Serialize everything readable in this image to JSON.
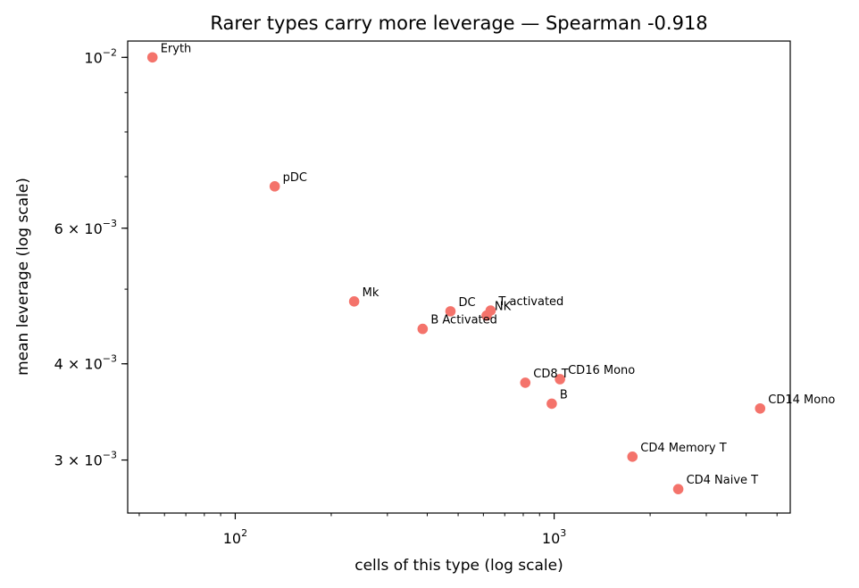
{
  "chart_data": {
    "type": "scatter",
    "title": "Rarer types carry more leverage — Spearman -0.918",
    "xlabel": "cells of this type (log scale)",
    "ylabel": "mean leverage (log scale)",
    "xscale": "log",
    "yscale": "log",
    "xlim": [
      46,
      5500
    ],
    "ylim": [
      0.00256,
      0.0105
    ],
    "grid": false,
    "marker_color": "#f4736b",
    "x_ticks": [
      {
        "value": 100,
        "base": "10",
        "exp": "2"
      },
      {
        "value": 1000,
        "base": "10",
        "exp": "3"
      }
    ],
    "y_ticks": [
      {
        "value": 0.003,
        "mant": "3",
        "base": "10",
        "exp": "−3"
      },
      {
        "value": 0.004,
        "mant": "4",
        "base": "10",
        "exp": "−3"
      },
      {
        "value": 0.006,
        "mant": "6",
        "base": "10",
        "exp": "−3"
      },
      {
        "value": 0.01,
        "mant": "",
        "base": "10",
        "exp": "−2"
      }
    ],
    "points": [
      {
        "label": "Eryth",
        "x": 55,
        "y": 0.01,
        "dx": 9,
        "dy": -6
      },
      {
        "label": "pDC",
        "x": 133,
        "y": 0.0068,
        "dx": 9,
        "dy": -6
      },
      {
        "label": "Mk",
        "x": 236,
        "y": 0.00482,
        "dx": 9,
        "dy": -6
      },
      {
        "label": "DC",
        "x": 473,
        "y": 0.00468,
        "dx": 9,
        "dy": -6
      },
      {
        "label": "NK",
        "x": 614,
        "y": 0.00462,
        "dx": 9,
        "dy": -6
      },
      {
        "label": "T activated",
        "x": 632,
        "y": 0.00469,
        "dx": 9,
        "dy": -6
      },
      {
        "label": "B Activated",
        "x": 387,
        "y": 0.00444,
        "dx": 9,
        "dy": -6
      },
      {
        "label": "CD8 T",
        "x": 812,
        "y": 0.00378,
        "dx": 9,
        "dy": -6
      },
      {
        "label": "CD16 Mono",
        "x": 1043,
        "y": 0.00382,
        "dx": 9,
        "dy": -6
      },
      {
        "label": "B",
        "x": 983,
        "y": 0.00355,
        "dx": 9,
        "dy": -6
      },
      {
        "label": "CD14 Mono",
        "x": 4425,
        "y": 0.0035,
        "dx": 9,
        "dy": -6
      },
      {
        "label": "CD4 Memory T",
        "x": 1760,
        "y": 0.00303,
        "dx": 9,
        "dy": -6
      },
      {
        "label": "CD4 Naive T",
        "x": 2450,
        "y": 0.00275,
        "dx": 9,
        "dy": -6
      }
    ]
  }
}
